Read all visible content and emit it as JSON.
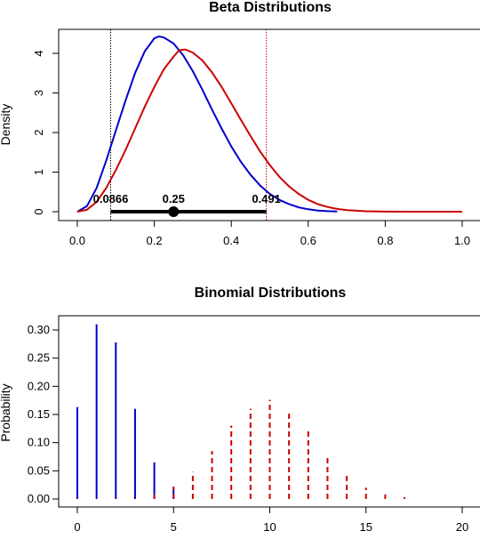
{
  "chart_data": [
    {
      "type": "line",
      "title": "Beta Distributions",
      "xlabel": "",
      "ylabel": "Density",
      "xlim": [
        0,
        1
      ],
      "ylim": [
        0,
        4.4
      ],
      "x_ticks": [
        "0.0",
        "0.2",
        "0.4",
        "0.6",
        "0.8",
        "1.0"
      ],
      "y_ticks": [
        "0",
        "1",
        "2",
        "3",
        "4"
      ],
      "series": [
        {
          "color": "#0000cc",
          "points": [
            [
              0.0,
              0.0
            ],
            [
              0.025,
              0.14
            ],
            [
              0.05,
              0.6
            ],
            [
              0.075,
              1.29
            ],
            [
              0.1,
              2.05
            ],
            [
              0.125,
              2.8
            ],
            [
              0.15,
              3.5
            ],
            [
              0.175,
              4.05
            ],
            [
              0.2,
              4.38
            ],
            [
              0.212,
              4.43
            ],
            [
              0.225,
              4.4
            ],
            [
              0.25,
              4.25
            ],
            [
              0.275,
              3.95
            ],
            [
              0.3,
              3.55
            ],
            [
              0.325,
              3.08
            ],
            [
              0.35,
              2.58
            ],
            [
              0.375,
              2.1
            ],
            [
              0.4,
              1.65
            ],
            [
              0.425,
              1.26
            ],
            [
              0.45,
              0.93
            ],
            [
              0.475,
              0.66
            ],
            [
              0.5,
              0.45
            ],
            [
              0.525,
              0.3
            ],
            [
              0.55,
              0.19
            ],
            [
              0.575,
              0.11
            ],
            [
              0.6,
              0.06
            ],
            [
              0.625,
              0.03
            ],
            [
              0.65,
              0.013
            ],
            [
              0.675,
              0.004
            ]
          ]
        },
        {
          "color": "#cc0000",
          "points": [
            [
              0.0,
              0.0
            ],
            [
              0.025,
              0.05
            ],
            [
              0.05,
              0.25
            ],
            [
              0.075,
              0.6
            ],
            [
              0.1,
              1.05
            ],
            [
              0.125,
              1.55
            ],
            [
              0.15,
              2.1
            ],
            [
              0.175,
              2.65
            ],
            [
              0.2,
              3.15
            ],
            [
              0.225,
              3.6
            ],
            [
              0.25,
              3.92
            ],
            [
              0.265,
              4.08
            ],
            [
              0.28,
              4.1
            ],
            [
              0.3,
              4.02
            ],
            [
              0.325,
              3.82
            ],
            [
              0.35,
              3.52
            ],
            [
              0.375,
              3.15
            ],
            [
              0.4,
              2.74
            ],
            [
              0.425,
              2.32
            ],
            [
              0.45,
              1.91
            ],
            [
              0.475,
              1.52
            ],
            [
              0.5,
              1.18
            ],
            [
              0.525,
              0.88
            ],
            [
              0.55,
              0.64
            ],
            [
              0.575,
              0.45
            ],
            [
              0.6,
              0.3
            ],
            [
              0.625,
              0.19
            ],
            [
              0.65,
              0.12
            ],
            [
              0.675,
              0.07
            ],
            [
              0.7,
              0.04
            ],
            [
              0.75,
              0.012
            ],
            [
              0.8,
              0.003
            ],
            [
              0.85,
              0.0
            ],
            [
              1.0,
              0.0
            ]
          ]
        }
      ],
      "vlines": [
        {
          "x": 0.0866,
          "color": "#000000"
        },
        {
          "x": 0.491,
          "color": "#cc0000"
        }
      ],
      "interval": {
        "lower": 0.0866,
        "upper": 0.491,
        "point": 0.25
      },
      "annotations": [
        {
          "text": "0.0866",
          "x": 0.0866
        },
        {
          "text": "0.25",
          "x": 0.25
        },
        {
          "text": "0.491",
          "x": 0.491
        }
      ]
    },
    {
      "type": "bar",
      "title": "Binomial Distributions",
      "xlabel": "",
      "ylabel": "Probability",
      "xlim": [
        0,
        20
      ],
      "ylim": [
        0,
        0.31
      ],
      "x_ticks": [
        "0",
        "5",
        "10",
        "15",
        "20"
      ],
      "y_ticks": [
        "0.00",
        "0.05",
        "0.10",
        "0.15",
        "0.20",
        "0.25",
        "0.30"
      ],
      "series": [
        {
          "color": "#0000cc",
          "style": "solid",
          "x": [
            0,
            1,
            2,
            3,
            4,
            5
          ],
          "values": [
            0.163,
            0.31,
            0.278,
            0.16,
            0.065,
            0.02
          ]
        },
        {
          "color": "#cc0000",
          "style": "dashed",
          "x": [
            4,
            5,
            6,
            7,
            8,
            9,
            10,
            11,
            12,
            13,
            14,
            15,
            16,
            17
          ],
          "values": [
            0.008,
            0.022,
            0.048,
            0.085,
            0.13,
            0.16,
            0.176,
            0.157,
            0.12,
            0.078,
            0.043,
            0.02,
            0.008,
            0.003
          ]
        }
      ]
    }
  ]
}
